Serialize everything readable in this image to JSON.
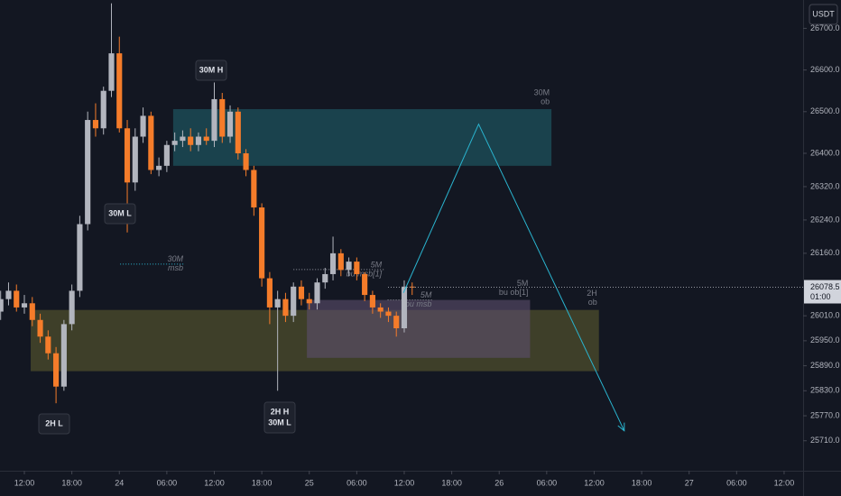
{
  "chart_data": {
    "type": "candlestick",
    "currency": "USDT",
    "x": [
      -3,
      -2,
      -1,
      0,
      1,
      2,
      3,
      4,
      5,
      6,
      7,
      8,
      9,
      10,
      11,
      12,
      13,
      14,
      15,
      16,
      17,
      18,
      19,
      20,
      21,
      22,
      23,
      24,
      25,
      26,
      27,
      28,
      29,
      30,
      31,
      32,
      33,
      34,
      35,
      36,
      37,
      38,
      39,
      40,
      41,
      42,
      43,
      44,
      45,
      46,
      47,
      48,
      49
    ],
    "open": [
      26020,
      26050,
      26070,
      26030,
      26040,
      26000,
      25960,
      25920,
      25840,
      25990,
      26070,
      26230,
      26480,
      26460,
      26550,
      26640,
      26460,
      26330,
      26440,
      26490,
      26360,
      26370,
      26420,
      26430,
      26440,
      26420,
      26440,
      26430,
      26530,
      26440,
      26500,
      26400,
      26360,
      26270,
      26100,
      26030,
      26050,
      26010,
      26080,
      26050,
      26040,
      26090,
      26110,
      26160,
      26120,
      26140,
      26110,
      26060,
      26030,
      26020,
      26010,
      25980,
      26080
    ],
    "high": [
      26070,
      26090,
      26085,
      26060,
      26055,
      26015,
      25975,
      25935,
      26000,
      26085,
      26250,
      26500,
      26520,
      26560,
      26760,
      26680,
      26480,
      26460,
      26510,
      26500,
      26390,
      26430,
      26450,
      26455,
      26460,
      26450,
      26460,
      26570,
      26545,
      26515,
      26510,
      26410,
      26370,
      26280,
      26115,
      26070,
      26065,
      26090,
      26095,
      26065,
      26100,
      26125,
      26200,
      26170,
      26150,
      26150,
      26115,
      26070,
      26040,
      26030,
      26020,
      26095,
      26090
    ],
    "low": [
      26000,
      26035,
      26020,
      26015,
      25985,
      25945,
      25905,
      25800,
      25830,
      25975,
      26055,
      26215,
      26440,
      26445,
      26535,
      26450,
      26210,
      26310,
      26425,
      26350,
      26345,
      26355,
      26405,
      26415,
      26405,
      26405,
      26420,
      26415,
      26425,
      26425,
      26385,
      26345,
      26250,
      26080,
      25990,
      25830,
      25995,
      25995,
      26035,
      26025,
      26025,
      26075,
      26095,
      26105,
      26105,
      26095,
      26045,
      26015,
      26005,
      25995,
      25960,
      25970,
      26060
    ],
    "close": [
      26050,
      26070,
      26030,
      26040,
      26000,
      25960,
      25920,
      25840,
      25990,
      26070,
      26230,
      26480,
      26460,
      26550,
      26640,
      26460,
      26330,
      26440,
      26490,
      26360,
      26370,
      26420,
      26430,
      26440,
      26420,
      26440,
      26430,
      26530,
      26440,
      26500,
      26400,
      26360,
      26270,
      26100,
      26030,
      26050,
      26010,
      26080,
      26050,
      26040,
      26090,
      26110,
      26160,
      26120,
      26140,
      26110,
      26060,
      26030,
      26020,
      26010,
      25980,
      26080,
      26078.5
    ],
    "up_color": "#b2b5be",
    "down_color": "#f57c2a",
    "xlim": [
      -3.08,
      98.4
    ],
    "ylim": [
      25638,
      26768
    ],
    "xticks": [
      {
        "value": 0,
        "label": "12:00"
      },
      {
        "value": 6,
        "label": "18:00"
      },
      {
        "value": 12,
        "label": "24"
      },
      {
        "value": 18,
        "label": "06:00"
      },
      {
        "value": 24,
        "label": "12:00"
      },
      {
        "value": 30,
        "label": "18:00"
      },
      {
        "value": 36,
        "label": "25"
      },
      {
        "value": 42,
        "label": "06:00"
      },
      {
        "value": 48,
        "label": "12:00"
      },
      {
        "value": 54,
        "label": "18:00"
      },
      {
        "value": 60,
        "label": "26"
      },
      {
        "value": 66,
        "label": "06:00"
      },
      {
        "value": 72,
        "label": "12:00"
      },
      {
        "value": 78,
        "label": "18:00"
      },
      {
        "value": 84,
        "label": "27"
      },
      {
        "value": 90,
        "label": "06:00"
      },
      {
        "value": 96,
        "label": "12:00"
      }
    ],
    "yticks": [
      {
        "value": 26700,
        "label": "26700.0"
      },
      {
        "value": 26600,
        "label": "26600.0"
      },
      {
        "value": 26500,
        "label": "26500.0"
      },
      {
        "value": 26400,
        "label": "26400.0"
      },
      {
        "value": 26320,
        "label": "26320.0"
      },
      {
        "value": 26240,
        "label": "26240.0"
      },
      {
        "value": 26160,
        "label": "26160.0"
      },
      {
        "value": 26010,
        "label": "26010.0"
      },
      {
        "value": 25950,
        "label": "25950.0"
      },
      {
        "value": 25890,
        "label": "25890.0"
      },
      {
        "value": 25830,
        "label": "25830.0"
      },
      {
        "value": 25770,
        "label": "25770.0"
      },
      {
        "value": 25710,
        "label": "25710.0"
      }
    ],
    "last_price": {
      "value": 26078.5,
      "countdown": "01:00"
    },
    "zones": [
      {
        "lines": [
          "30M",
          "ob"
        ],
        "x": [
          18.8,
          66.6
        ],
        "y": [
          26370,
          26506
        ],
        "color": "#1f5f6b"
      },
      {
        "lines": [
          "2H",
          "ob"
        ],
        "x": [
          0.8,
          72.6
        ],
        "y": [
          25877,
          26024
        ],
        "color": "#5c5a2e"
      },
      {
        "lines": [
          "5M",
          "bu ob[1]"
        ],
        "x": [
          35.7,
          63.9
        ],
        "y": [
          25909,
          26048
        ],
        "color": "#5d4e6e"
      }
    ],
    "levels": [
      {
        "lines": [
          "30M",
          "msb"
        ],
        "x": [
          12.1,
          20.3
        ],
        "y": 26134
      },
      {
        "lines": [
          "5M",
          "bu msb[1]"
        ],
        "x": [
          34,
          45.4
        ],
        "y": 26121
      },
      {
        "lines": [
          "5M",
          "bu msb"
        ],
        "x": [
          45.9,
          51.7
        ],
        "y": 26048
      }
    ],
    "annotations": [
      {
        "lines": [
          "30M H"
        ]
      },
      {
        "lines": [
          "30M L"
        ]
      },
      {
        "lines": [
          "2H L"
        ]
      },
      {
        "lines": [
          "2H H",
          "30M L"
        ]
      }
    ],
    "projection": {
      "x": [
        47.9,
        57.4,
        75.8
      ],
      "y": [
        26065,
        26470,
        25734
      ],
      "color": "#2ab4cf"
    }
  }
}
